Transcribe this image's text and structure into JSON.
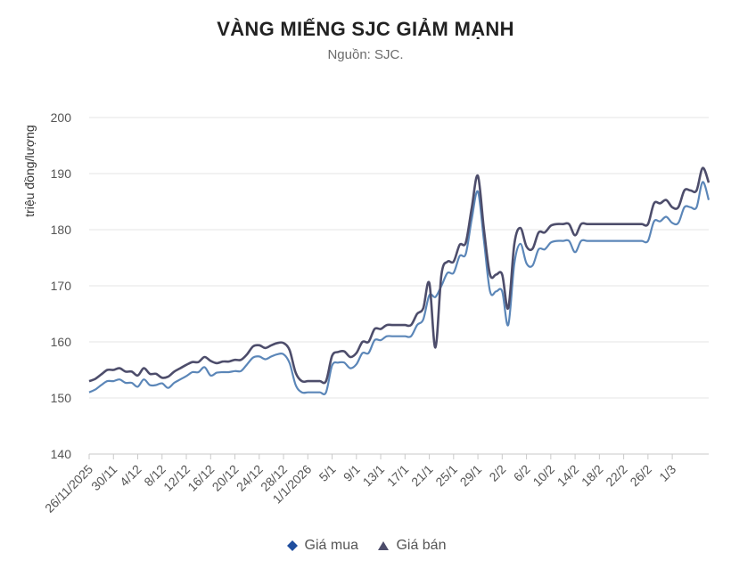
{
  "chart_data": {
    "type": "line",
    "title": "VÀNG MIẾNG SJC GIẢM MẠNH",
    "subtitle": "Nguồn: SJC.",
    "ylabel": "triệu đồng/lượng",
    "xlabel": "",
    "ylim": [
      140,
      200
    ],
    "yticks": [
      140,
      150,
      160,
      170,
      180,
      190,
      200
    ],
    "grid": true,
    "legend_position": "bottom",
    "x_tick_labels": [
      "26/11/2025",
      "30/11",
      "4/12",
      "8/12",
      "12/12",
      "16/12",
      "20/12",
      "24/12",
      "28/12",
      "1/1/2026",
      "5/1",
      "9/1",
      "13/1",
      "17/1",
      "21/1",
      "25/1",
      "29/1",
      "2/2",
      "6/2",
      "10/2",
      "14/2",
      "18/2",
      "22/2",
      "26/2",
      "1/3"
    ],
    "series": [
      {
        "name": "Giá mua",
        "color": "#5b86b8",
        "values": [
          [
            0,
            151
          ],
          [
            1,
            151.5
          ],
          [
            2,
            152.3
          ],
          [
            3,
            153
          ],
          [
            4,
            153
          ],
          [
            5,
            153.3
          ],
          [
            6,
            152.7
          ],
          [
            7,
            152.7
          ],
          [
            8,
            152
          ],
          [
            9,
            153.3
          ],
          [
            10,
            152.3
          ],
          [
            11,
            152.3
          ],
          [
            12,
            152.6
          ],
          [
            13,
            151.8
          ],
          [
            14,
            152.7
          ],
          [
            15,
            153.3
          ],
          [
            16,
            153.9
          ],
          [
            17,
            154.6
          ],
          [
            18,
            154.6
          ],
          [
            19,
            155.5
          ],
          [
            20,
            154
          ],
          [
            21,
            154.5
          ],
          [
            22,
            154.6
          ],
          [
            23,
            154.6
          ],
          [
            24,
            154.8
          ],
          [
            25,
            154.8
          ],
          [
            26,
            156
          ],
          [
            27,
            157.2
          ],
          [
            28,
            157.4
          ],
          [
            29,
            156.9
          ],
          [
            30,
            157.4
          ],
          [
            31,
            157.8
          ],
          [
            32,
            157.8
          ],
          [
            33,
            156.2
          ],
          [
            34,
            152.3
          ],
          [
            35,
            151
          ],
          [
            36,
            151
          ],
          [
            37,
            151
          ],
          [
            38,
            151
          ],
          [
            39,
            151
          ],
          [
            40,
            155.8
          ],
          [
            41,
            156.3
          ],
          [
            42,
            156.3
          ],
          [
            43,
            155.3
          ],
          [
            44,
            156
          ],
          [
            45,
            158
          ],
          [
            46,
            158
          ],
          [
            47,
            160.3
          ],
          [
            48,
            160.3
          ],
          [
            49,
            161
          ],
          [
            50,
            161
          ],
          [
            51,
            161
          ],
          [
            52,
            161
          ],
          [
            53,
            161
          ],
          [
            54,
            163
          ],
          [
            55,
            164
          ],
          [
            56,
            168.3
          ],
          [
            57,
            168
          ],
          [
            58,
            170
          ],
          [
            59,
            172.3
          ],
          [
            60,
            172.3
          ],
          [
            61,
            175.3
          ],
          [
            62,
            175.7
          ],
          [
            63,
            182
          ],
          [
            64,
            186.8
          ],
          [
            65,
            178
          ],
          [
            66,
            169
          ],
          [
            67,
            169
          ],
          [
            68,
            169
          ],
          [
            69,
            163
          ],
          [
            70,
            174
          ],
          [
            71,
            177.5
          ],
          [
            72,
            174
          ],
          [
            73,
            173.6
          ],
          [
            74,
            176.5
          ],
          [
            75,
            176.5
          ],
          [
            76,
            177.7
          ],
          [
            77,
            178
          ],
          [
            78,
            178
          ],
          [
            79,
            178
          ],
          [
            80,
            176
          ],
          [
            81,
            178
          ],
          [
            82,
            178
          ],
          [
            83,
            178
          ],
          [
            84,
            178
          ],
          [
            85,
            178
          ],
          [
            86,
            178
          ],
          [
            87,
            178
          ],
          [
            88,
            178
          ],
          [
            89,
            178
          ],
          [
            90,
            178
          ],
          [
            91,
            178
          ],
          [
            92,
            178
          ],
          [
            93,
            181.5
          ],
          [
            94,
            181.5
          ],
          [
            95,
            182.3
          ],
          [
            96,
            181.2
          ],
          [
            97,
            181.2
          ],
          [
            98,
            184
          ],
          [
            99,
            184
          ],
          [
            100,
            184
          ],
          [
            101,
            188.5
          ],
          [
            102,
            185.3
          ]
        ]
      },
      {
        "name": "Giá bán",
        "color": "#4d4d6b",
        "values": [
          [
            0,
            153
          ],
          [
            1,
            153.4
          ],
          [
            2,
            154.2
          ],
          [
            3,
            155
          ],
          [
            4,
            155
          ],
          [
            5,
            155.3
          ],
          [
            6,
            154.7
          ],
          [
            7,
            154.7
          ],
          [
            8,
            154
          ],
          [
            9,
            155.3
          ],
          [
            10,
            154.3
          ],
          [
            11,
            154.3
          ],
          [
            12,
            153.6
          ],
          [
            13,
            153.8
          ],
          [
            14,
            154.7
          ],
          [
            15,
            155.3
          ],
          [
            16,
            155.9
          ],
          [
            17,
            156.4
          ],
          [
            18,
            156.4
          ],
          [
            19,
            157.3
          ],
          [
            20,
            156.6
          ],
          [
            21,
            156.2
          ],
          [
            22,
            156.5
          ],
          [
            23,
            156.5
          ],
          [
            24,
            156.8
          ],
          [
            25,
            156.8
          ],
          [
            26,
            157.8
          ],
          [
            27,
            159.2
          ],
          [
            28,
            159.4
          ],
          [
            29,
            158.9
          ],
          [
            30,
            159.4
          ],
          [
            31,
            159.8
          ],
          [
            32,
            159.8
          ],
          [
            33,
            158.5
          ],
          [
            34,
            154.5
          ],
          [
            35,
            153
          ],
          [
            36,
            153
          ],
          [
            37,
            153
          ],
          [
            38,
            153
          ],
          [
            39,
            153
          ],
          [
            40,
            157.5
          ],
          [
            41,
            158.2
          ],
          [
            42,
            158.3
          ],
          [
            43,
            157.3
          ],
          [
            44,
            158
          ],
          [
            45,
            160
          ],
          [
            46,
            160
          ],
          [
            47,
            162.3
          ],
          [
            48,
            162.3
          ],
          [
            49,
            163
          ],
          [
            50,
            163
          ],
          [
            51,
            163
          ],
          [
            52,
            163
          ],
          [
            53,
            163
          ],
          [
            54,
            165
          ],
          [
            55,
            166
          ],
          [
            56,
            170.5
          ],
          [
            57,
            159
          ],
          [
            58,
            172
          ],
          [
            59,
            174.3
          ],
          [
            60,
            174.3
          ],
          [
            61,
            177.3
          ],
          [
            62,
            177.7
          ],
          [
            63,
            184
          ],
          [
            64,
            189.6
          ],
          [
            65,
            180
          ],
          [
            66,
            172
          ],
          [
            67,
            172
          ],
          [
            68,
            172
          ],
          [
            69,
            166
          ],
          [
            70,
            177.5
          ],
          [
            71,
            180.3
          ],
          [
            72,
            177
          ],
          [
            73,
            176.6
          ],
          [
            74,
            179.5
          ],
          [
            75,
            179.5
          ],
          [
            76,
            180.7
          ],
          [
            77,
            181
          ],
          [
            78,
            181
          ],
          [
            79,
            181
          ],
          [
            80,
            179
          ],
          [
            81,
            181
          ],
          [
            82,
            181
          ],
          [
            83,
            181
          ],
          [
            84,
            181
          ],
          [
            85,
            181
          ],
          [
            86,
            181
          ],
          [
            87,
            181
          ],
          [
            88,
            181
          ],
          [
            89,
            181
          ],
          [
            90,
            181
          ],
          [
            91,
            181
          ],
          [
            92,
            181
          ],
          [
            93,
            184.7
          ],
          [
            94,
            184.7
          ],
          [
            95,
            185.3
          ],
          [
            96,
            184
          ],
          [
            97,
            184
          ],
          [
            98,
            187
          ],
          [
            99,
            187
          ],
          [
            100,
            187
          ],
          [
            101,
            191
          ],
          [
            102,
            188.4
          ]
        ]
      }
    ]
  }
}
